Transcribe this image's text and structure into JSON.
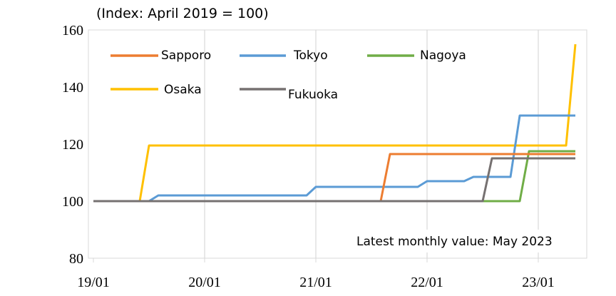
{
  "chart_data": {
    "type": "line",
    "title": "",
    "unit_label": "(Index: April 2019 = 100)",
    "note": "Latest monthly value: May 2023",
    "xlabel": "",
    "ylabel": "",
    "ylim": [
      80,
      160
    ],
    "yticks": [
      80,
      100,
      120,
      140,
      160
    ],
    "xlim": [
      "2019-01",
      "2023-06"
    ],
    "xticks": [
      {
        "date": "2019-01",
        "label": "19/01"
      },
      {
        "date": "2020-01",
        "label": "20/01"
      },
      {
        "date": "2021-01",
        "label": "21/01"
      },
      {
        "date": "2022-01",
        "label": "22/01"
      },
      {
        "date": "2023-01",
        "label": "23/01"
      }
    ],
    "grid": "vertical",
    "legend": "top-left, inside plot",
    "series": [
      {
        "name": "Sapporo",
        "color": "#ED7D31",
        "points": [
          [
            "2019-01",
            100
          ],
          [
            "2021-08",
            100
          ],
          [
            "2021-09",
            116.5
          ],
          [
            "2023-05",
            116.5
          ]
        ]
      },
      {
        "name": "Tokyo",
        "color": "#5B9BD5",
        "points": [
          [
            "2019-01",
            100
          ],
          [
            "2019-07",
            100
          ],
          [
            "2019-08",
            102
          ],
          [
            "2020-12",
            102
          ],
          [
            "2021-01",
            105
          ],
          [
            "2021-12",
            105
          ],
          [
            "2022-01",
            107
          ],
          [
            "2022-05",
            107
          ],
          [
            "2022-06",
            108.5
          ],
          [
            "2022-10",
            108.5
          ],
          [
            "2022-11",
            130
          ],
          [
            "2023-05",
            130
          ]
        ]
      },
      {
        "name": "Nagoya",
        "color": "#70AD47",
        "points": [
          [
            "2019-01",
            100
          ],
          [
            "2022-11",
            100
          ],
          [
            "2022-12",
            117.5
          ],
          [
            "2023-05",
            117.5
          ]
        ]
      },
      {
        "name": "Osaka",
        "color": "#FFC000",
        "points": [
          [
            "2019-01",
            100
          ],
          [
            "2019-06",
            100
          ],
          [
            "2019-07",
            119.5
          ],
          [
            "2023-04",
            119.5
          ],
          [
            "2023-05",
            155
          ]
        ]
      },
      {
        "name": "Fukuoka",
        "color": "#767171",
        "points": [
          [
            "2019-01",
            100
          ],
          [
            "2022-07",
            100
          ],
          [
            "2022-08",
            115
          ],
          [
            "2023-05",
            115
          ]
        ]
      }
    ]
  }
}
